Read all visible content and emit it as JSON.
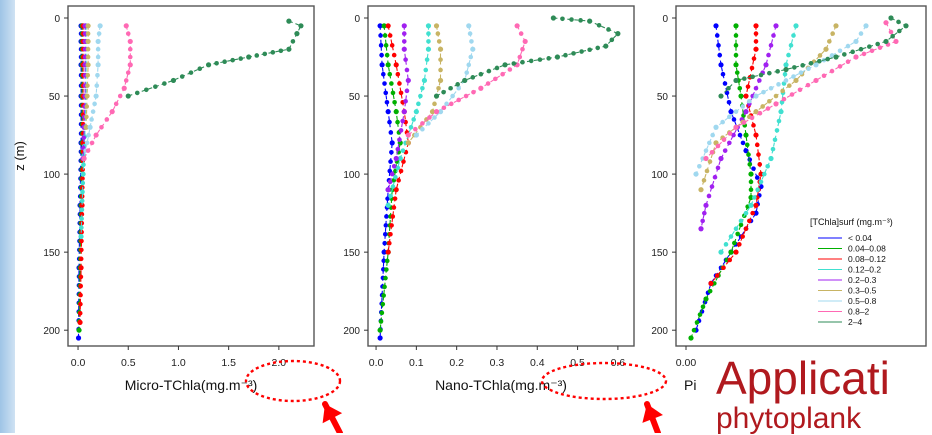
{
  "chart_data": [
    {
      "type": "scatter",
      "xlabel": "Micro-TChla(mg.m⁻³)",
      "ylabel": "z (m)",
      "xticks": [
        "0.0",
        "0.5",
        "1.0",
        "1.5",
        "2.0"
      ],
      "xtick_values": [
        0,
        0.5,
        1.0,
        1.5,
        2.0
      ],
      "yticks": [
        "0",
        "50",
        "100",
        "150",
        "200"
      ],
      "xlim": [
        -0.1,
        2.35
      ],
      "ylim": [
        0,
        205
      ],
      "series": [
        {
          "color": "#0000ff",
          "points": [
            [
              0.03,
              5
            ],
            [
              0.03,
              15
            ],
            [
              0.03,
              30
            ],
            [
              0.03,
              50
            ],
            [
              0.03,
              80
            ],
            [
              0.02,
              120
            ],
            [
              0.01,
              160
            ],
            [
              0.005,
              205
            ]
          ]
        },
        {
          "color": "#00b000",
          "points": [
            [
              0.04,
              5
            ],
            [
              0.04,
              15
            ],
            [
              0.04,
              30
            ],
            [
              0.04,
              50
            ],
            [
              0.04,
              80
            ],
            [
              0.03,
              120
            ],
            [
              0.02,
              160
            ],
            [
              0.01,
              200
            ]
          ]
        },
        {
          "color": "#ff0000",
          "points": [
            [
              0.05,
              5
            ],
            [
              0.05,
              15
            ],
            [
              0.05,
              30
            ],
            [
              0.05,
              50
            ],
            [
              0.05,
              80
            ],
            [
              0.04,
              120
            ],
            [
              0.03,
              160
            ],
            [
              0.02,
              195
            ]
          ]
        },
        {
          "color": "#40e0d0",
          "points": [
            [
              0.08,
              5
            ],
            [
              0.08,
              15
            ],
            [
              0.08,
              30
            ],
            [
              0.08,
              50
            ],
            [
              0.07,
              70
            ],
            [
              0.05,
              100
            ],
            [
              0.03,
              140
            ]
          ]
        },
        {
          "color": "#a020f0",
          "points": [
            [
              0.07,
              5
            ],
            [
              0.07,
              15
            ],
            [
              0.07,
              30
            ],
            [
              0.07,
              50
            ],
            [
              0.06,
              70
            ],
            [
              0.05,
              90
            ]
          ]
        },
        {
          "color": "#c8b464",
          "points": [
            [
              0.1,
              5
            ],
            [
              0.1,
              15
            ],
            [
              0.1,
              30
            ],
            [
              0.09,
              50
            ],
            [
              0.08,
              70
            ]
          ]
        },
        {
          "color": "#a0d8ef",
          "points": [
            [
              0.22,
              5
            ],
            [
              0.2,
              15
            ],
            [
              0.2,
              30
            ],
            [
              0.18,
              50
            ],
            [
              0.12,
              70
            ],
            [
              0.06,
              90
            ]
          ]
        },
        {
          "color": "#ff69b4",
          "points": [
            [
              0.48,
              5
            ],
            [
              0.52,
              15
            ],
            [
              0.52,
              30
            ],
            [
              0.46,
              45
            ],
            [
              0.34,
              60
            ],
            [
              0.18,
              75
            ],
            [
              0.06,
              90
            ]
          ]
        },
        {
          "color": "#2e8b57",
          "points": [
            [
              2.1,
              2
            ],
            [
              2.22,
              5
            ],
            [
              2.18,
              10
            ],
            [
              2.1,
              20
            ],
            [
              1.7,
              25
            ],
            [
              1.3,
              30
            ],
            [
              0.95,
              40
            ],
            [
              0.5,
              50
            ]
          ]
        }
      ]
    },
    {
      "type": "scatter",
      "xlabel": "Nano-TChla(mg.m⁻³)",
      "ylabel": "",
      "xticks": [
        "0.0",
        "0.1",
        "0.2",
        "0.3",
        "0.4",
        "0.5",
        "0.6"
      ],
      "xtick_values": [
        0,
        0.1,
        0.2,
        0.3,
        0.4,
        0.5,
        0.6
      ],
      "yticks": [
        "0",
        "50",
        "100",
        "150",
        "200"
      ],
      "xlim": [
        -0.02,
        0.64
      ],
      "ylim": [
        0,
        205
      ],
      "series": [
        {
          "color": "#0000ff",
          "points": [
            [
              0.01,
              5
            ],
            [
              0.015,
              30
            ],
            [
              0.03,
              60
            ],
            [
              0.04,
              80
            ],
            [
              0.03,
              110
            ],
            [
              0.02,
              150
            ],
            [
              0.01,
              205
            ]
          ]
        },
        {
          "color": "#00b000",
          "points": [
            [
              0.02,
              5
            ],
            [
              0.03,
              30
            ],
            [
              0.05,
              60
            ],
            [
              0.06,
              80
            ],
            [
              0.04,
              110
            ],
            [
              0.03,
              150
            ],
            [
              0.01,
              200
            ]
          ]
        },
        {
          "color": "#ff0000",
          "points": [
            [
              0.03,
              5
            ],
            [
              0.05,
              30
            ],
            [
              0.07,
              60
            ],
            [
              0.08,
              80
            ],
            [
              0.05,
              110
            ],
            [
              0.03,
              150
            ]
          ]
        },
        {
          "color": "#40e0d0",
          "points": [
            [
              0.13,
              5
            ],
            [
              0.13,
              20
            ],
            [
              0.12,
              40
            ],
            [
              0.1,
              60
            ],
            [
              0.06,
              90
            ],
            [
              0.03,
              120
            ]
          ]
        },
        {
          "color": "#a020f0",
          "points": [
            [
              0.07,
              5
            ],
            [
              0.07,
              20
            ],
            [
              0.08,
              40
            ],
            [
              0.07,
              60
            ],
            [
              0.05,
              90
            ],
            [
              0.03,
              110
            ]
          ]
        },
        {
          "color": "#c8b464",
          "points": [
            [
              0.15,
              5
            ],
            [
              0.16,
              20
            ],
            [
              0.16,
              40
            ],
            [
              0.14,
              60
            ],
            [
              0.08,
              80
            ]
          ]
        },
        {
          "color": "#a0d8ef",
          "points": [
            [
              0.23,
              5
            ],
            [
              0.24,
              20
            ],
            [
              0.22,
              40
            ],
            [
              0.16,
              60
            ],
            [
              0.1,
              75
            ]
          ]
        },
        {
          "color": "#ff69b4",
          "points": [
            [
              0.35,
              5
            ],
            [
              0.37,
              15
            ],
            [
              0.35,
              30
            ],
            [
              0.26,
              45
            ],
            [
              0.15,
              60
            ],
            [
              0.08,
              75
            ]
          ]
        },
        {
          "color": "#2e8b57",
          "points": [
            [
              0.44,
              0
            ],
            [
              0.53,
              2
            ],
            [
              0.6,
              10
            ],
            [
              0.57,
              18
            ],
            [
              0.45,
              25
            ],
            [
              0.32,
              30
            ],
            [
              0.22,
              40
            ],
            [
              0.15,
              50
            ]
          ]
        }
      ]
    },
    {
      "type": "scatter",
      "xlabel": "Pi",
      "ylabel": "",
      "xticks": [
        "0.00"
      ],
      "xtick_values": [
        0
      ],
      "yticks": [
        "0",
        "50",
        "100",
        "150",
        "200"
      ],
      "xlim": [
        -0.01,
        0.24
      ],
      "ylim": [
        0,
        205
      ],
      "series": [
        {
          "color": "#0000ff",
          "points": [
            [
              0.03,
              5
            ],
            [
              0.035,
              30
            ],
            [
              0.045,
              60
            ],
            [
              0.06,
              85
            ],
            [
              0.075,
              108
            ],
            [
              0.07,
              125
            ],
            [
              0.045,
              150
            ],
            [
              0.025,
              170
            ],
            [
              0.01,
              200
            ]
          ]
        },
        {
          "color": "#00b000",
          "points": [
            [
              0.05,
              5
            ],
            [
              0.05,
              30
            ],
            [
              0.055,
              50
            ],
            [
              0.06,
              75
            ],
            [
              0.065,
              100
            ],
            [
              0.065,
              115
            ],
            [
              0.045,
              150
            ],
            [
              0.02,
              180
            ],
            [
              0.005,
              205
            ]
          ]
        },
        {
          "color": "#ff0000",
          "points": [
            [
              0.07,
              5
            ],
            [
              0.07,
              20
            ],
            [
              0.06,
              50
            ],
            [
              0.07,
              75
            ],
            [
              0.075,
              100
            ],
            [
              0.07,
              120
            ],
            [
              0.05,
              150
            ],
            [
              0.025,
              170
            ]
          ]
        },
        {
          "color": "#40e0d0",
          "points": [
            [
              0.11,
              5
            ],
            [
              0.1,
              30
            ],
            [
              0.095,
              60
            ],
            [
              0.085,
              90
            ],
            [
              0.065,
              120
            ],
            [
              0.035,
              150
            ]
          ]
        },
        {
          "color": "#a020f0",
          "points": [
            [
              0.09,
              5
            ],
            [
              0.08,
              30
            ],
            [
              0.06,
              60
            ],
            [
              0.035,
              90
            ],
            [
              0.02,
              120
            ],
            [
              0.015,
              135
            ]
          ]
        },
        {
          "color": "#c8b464",
          "points": [
            [
              0.15,
              5
            ],
            [
              0.14,
              20
            ],
            [
              0.11,
              40
            ],
            [
              0.07,
              60
            ],
            [
              0.03,
              80
            ],
            [
              0.015,
              110
            ]
          ]
        },
        {
          "color": "#a0d8ef",
          "points": [
            [
              0.18,
              5
            ],
            [
              0.17,
              15
            ],
            [
              0.13,
              30
            ],
            [
              0.07,
              50
            ],
            [
              0.03,
              70
            ],
            [
              0.01,
              100
            ]
          ]
        },
        {
          "color": "#ff69b4",
          "points": [
            [
              0.2,
              3
            ],
            [
              0.21,
              15
            ],
            [
              0.17,
              25
            ],
            [
              0.13,
              40
            ],
            [
              0.09,
              55
            ],
            [
              0.05,
              70
            ],
            [
              0.02,
              90
            ]
          ]
        },
        {
          "color": "#2e8b57",
          "points": [
            [
              0.205,
              0
            ],
            [
              0.22,
              5
            ],
            [
              0.2,
              15
            ],
            [
              0.15,
              25
            ],
            [
              0.1,
              33
            ],
            [
              0.05,
              40
            ],
            [
              0.035,
              50
            ]
          ]
        }
      ]
    }
  ],
  "legend": {
    "title": "[TChla]surf (mg.m⁻³)",
    "entries": [
      {
        "label": "< 0.04",
        "color": "#0000ff"
      },
      {
        "label": "0.04–0.08",
        "color": "#00b000"
      },
      {
        "label": "0.08–0.12",
        "color": "#ff0000"
      },
      {
        "label": "0.12–0.2",
        "color": "#40e0d0"
      },
      {
        "label": "0.2–0.3",
        "color": "#a020f0"
      },
      {
        "label": "0.3–0.5",
        "color": "#c8b464"
      },
      {
        "label": "0.5–0.8",
        "color": "#a0d8ef"
      },
      {
        "label": "0.8–2",
        "color": "#ff69b4"
      },
      {
        "label": "2–4",
        "color": "#2e8b57"
      }
    ]
  },
  "overlay": {
    "title_partial": "Applicati",
    "subtitle_partial": "phytoplank",
    "highlight_color": "#ff0000",
    "text_color": "#b0191e"
  }
}
